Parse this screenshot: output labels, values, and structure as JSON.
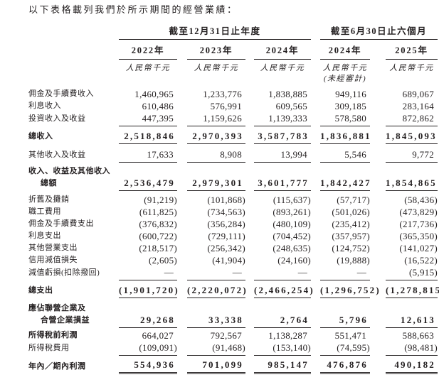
{
  "page": {
    "title": "以下表格載列我們於所示期間的經營業績："
  },
  "colors": {
    "text": "#231f20",
    "background": "#ffffff",
    "rule": "#231f20"
  },
  "table": {
    "col_groups": [
      {
        "label": "截至12月31日止年度",
        "span": 3
      },
      {
        "label": "截至6月30日止六個月",
        "span": 2
      }
    ],
    "years": [
      "2022年",
      "2023年",
      "2024年",
      "2024年",
      "2025年"
    ],
    "units": [
      "人民幣千元",
      "人民幣千元",
      "人民幣千元",
      "人民幣千元",
      "人民幣千元"
    ],
    "unaudited_note": "(未經審計)",
    "unaudited_col_index": 3,
    "rows": [
      {
        "label": "佣金及手續費收入",
        "bold_label": false,
        "bold_values": false,
        "underline": "none",
        "gap_before": 6,
        "values": [
          "1,460,965",
          "1,233,776",
          "1,838,885",
          "949,116",
          "689,067"
        ]
      },
      {
        "label": "利息收入",
        "bold_label": false,
        "bold_values": false,
        "underline": "none",
        "gap_before": 0,
        "values": [
          "610,486",
          "576,991",
          "609,565",
          "309,185",
          "283,164"
        ]
      },
      {
        "label": "投資收入及收益",
        "bold_label": false,
        "bold_values": false,
        "underline": "single",
        "gap_before": 0,
        "values": [
          "447,395",
          "1,159,626",
          "1,139,333",
          "578,580",
          "872,862"
        ]
      },
      {
        "label": "總收入",
        "bold_label": true,
        "bold_values": true,
        "underline": "single",
        "gap_before": 5,
        "values": [
          "2,518,846",
          "2,970,393",
          "3,587,783",
          "1,836,881",
          "1,845,093"
        ]
      },
      {
        "label": "其他收入及收益",
        "bold_label": false,
        "bold_values": false,
        "underline": "single",
        "gap_before": 6,
        "values": [
          "17,633",
          "8,908",
          "13,994",
          "5,546",
          "9,772"
        ]
      },
      {
        "label": "收入、收益及其他收入",
        "label2": "總額",
        "bold_label": true,
        "bold_values": true,
        "underline": "single",
        "gap_before": 4,
        "values": [
          "2,536,479",
          "2,979,301",
          "3,601,777",
          "1,842,427",
          "1,854,865"
        ]
      },
      {
        "label": "折舊及攤銷",
        "bold_label": false,
        "bold_values": false,
        "underline": "none",
        "gap_before": 4,
        "values": [
          "(91,219)",
          "(101,868)",
          "(115,637)",
          "(57,717)",
          "(58,436)"
        ]
      },
      {
        "label": "職工費用",
        "bold_label": false,
        "bold_values": false,
        "underline": "none",
        "gap_before": 0,
        "values": [
          "(611,825)",
          "(734,563)",
          "(893,261)",
          "(501,026)",
          "(473,829)"
        ]
      },
      {
        "label": "佣金及手續費支出",
        "bold_label": false,
        "bold_values": false,
        "underline": "none",
        "gap_before": 0,
        "values": [
          "(376,832)",
          "(356,284)",
          "(480,109)",
          "(235,412)",
          "(217,736)"
        ]
      },
      {
        "label": "利息支出",
        "bold_label": false,
        "bold_values": false,
        "underline": "none",
        "gap_before": 0,
        "values": [
          "(600,722)",
          "(729,111)",
          "(704,452)",
          "(357,957)",
          "(365,350)"
        ]
      },
      {
        "label": "其他營業支出",
        "bold_label": false,
        "bold_values": false,
        "underline": "none",
        "gap_before": 0,
        "values": [
          "(218,517)",
          "(256,342)",
          "(248,635)",
          "(124,752)",
          "(141,027)"
        ]
      },
      {
        "label": "信用減值損失",
        "bold_label": false,
        "bold_values": false,
        "underline": "none",
        "gap_before": 0,
        "values": [
          "(2,605)",
          "(41,904)",
          "(24,160)",
          "(19,888)",
          "(16,522)"
        ]
      },
      {
        "label": "減值虧損(扣除撥回)",
        "bold_label": false,
        "bold_values": false,
        "underline": "single",
        "gap_before": 0,
        "values": [
          "—",
          "—",
          "—",
          "—",
          "(5,915)"
        ]
      },
      {
        "label": "總支出",
        "bold_label": true,
        "bold_values": true,
        "underline": "single",
        "gap_before": 5,
        "values": [
          "(1,901,720)",
          "(2,220,072)",
          "(2,466,254)",
          "(1,296,752)",
          "(1,278,815)"
        ]
      },
      {
        "label": "應佔聯營企業及",
        "label2": "合營企業損益",
        "bold_label": true,
        "bold_values": true,
        "underline": "single",
        "gap_before": 6,
        "values": [
          "29,268",
          "33,338",
          "2,764",
          "5,796",
          "12,613"
        ]
      },
      {
        "label": "所得稅前利潤",
        "bold_label": true,
        "bold_values": false,
        "underline": "none",
        "gap_before": 2,
        "values": [
          "664,027",
          "792,567",
          "1,138,287",
          "551,471",
          "588,663"
        ]
      },
      {
        "label": "所得稅費用",
        "bold_label": false,
        "bold_values": false,
        "underline": "single",
        "gap_before": 0,
        "values": [
          "(109,091)",
          "(91,468)",
          "(153,140)",
          "(74,595)",
          "(98,481)"
        ]
      },
      {
        "label": "年內／期內利潤",
        "bold_label": true,
        "bold_values": true,
        "underline": "double",
        "gap_before": 4,
        "values": [
          "554,936",
          "701,099",
          "985,147",
          "476,876",
          "490,182"
        ]
      }
    ]
  }
}
